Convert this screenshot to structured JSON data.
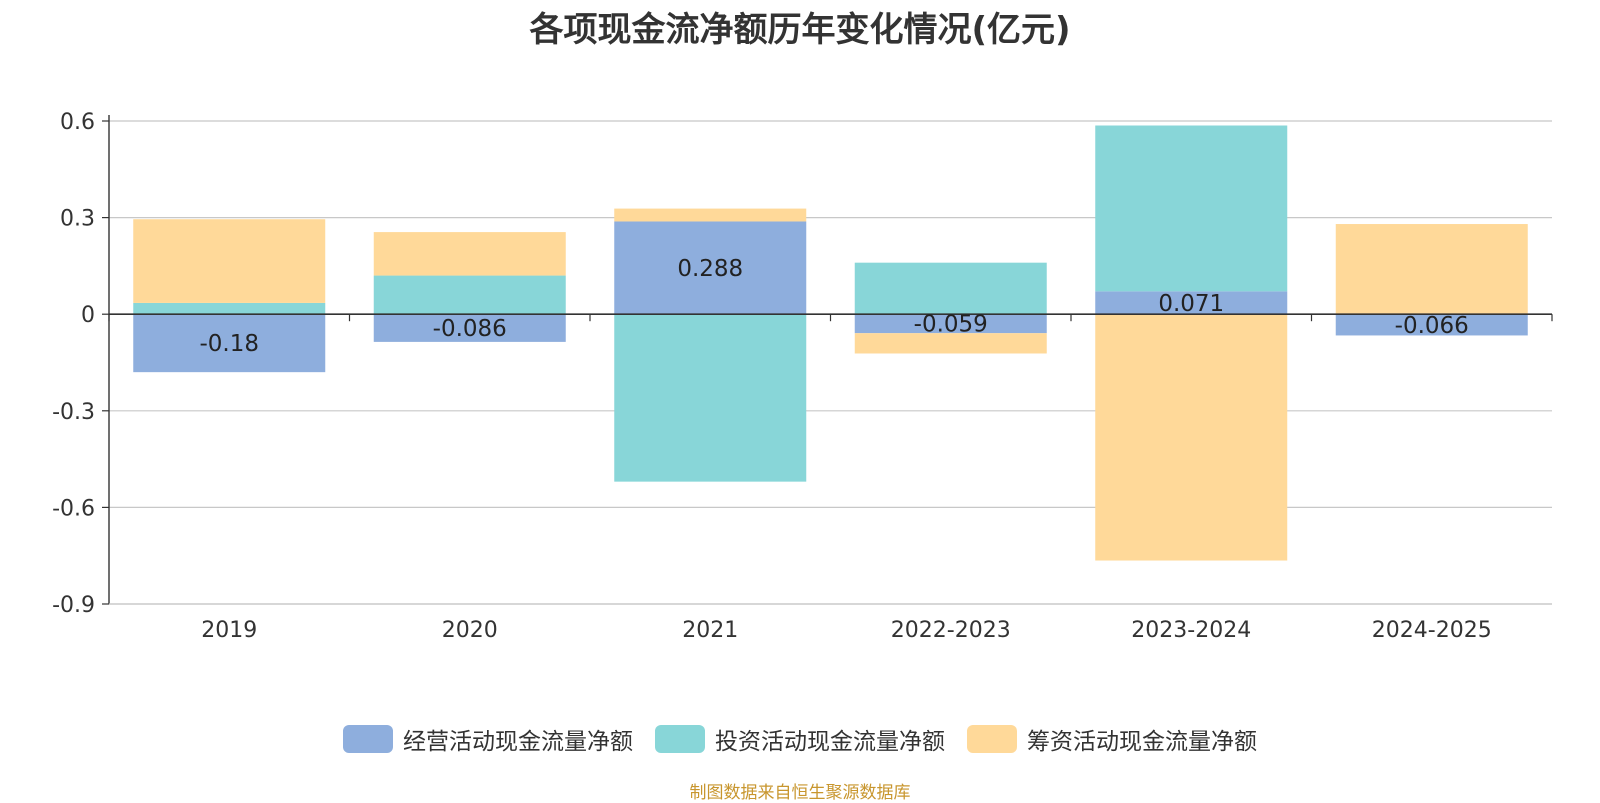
{
  "chart_data": {
    "type": "bar",
    "stacked": true,
    "title": "各项现金流净额历年变化情况(亿元)",
    "categories": [
      "2019",
      "2020",
      "2021",
      "2022-2023",
      "2023-2024",
      "2024-2025"
    ],
    "series": [
      {
        "name": "经营活动现金流量净额",
        "color": "#8eaedd",
        "values": [
          -0.18,
          -0.086,
          0.288,
          -0.059,
          0.071,
          -0.066
        ],
        "labels": [
          "-0.18",
          "-0.086",
          "0.288",
          "-0.059",
          "0.071",
          "-0.066"
        ]
      },
      {
        "name": "投资活动现金流量净额",
        "color": "#88d6d8",
        "values": [
          0.035,
          0.12,
          -0.52,
          0.16,
          0.515,
          0
        ]
      },
      {
        "name": "筹资活动现金流量净额",
        "color": "#ffd999",
        "values": [
          0.26,
          0.135,
          0.04,
          -0.063,
          -0.765,
          0.28
        ]
      }
    ],
    "y_ticks": [
      "0.6",
      "0.3",
      "0",
      "-0.3",
      "-0.6",
      "-0.9"
    ],
    "ylim": [
      -0.9,
      0.6
    ],
    "grid": true,
    "legend_position": "bottom",
    "source": "制图数据来自恒生聚源数据库",
    "source_color": "#c8962e"
  }
}
